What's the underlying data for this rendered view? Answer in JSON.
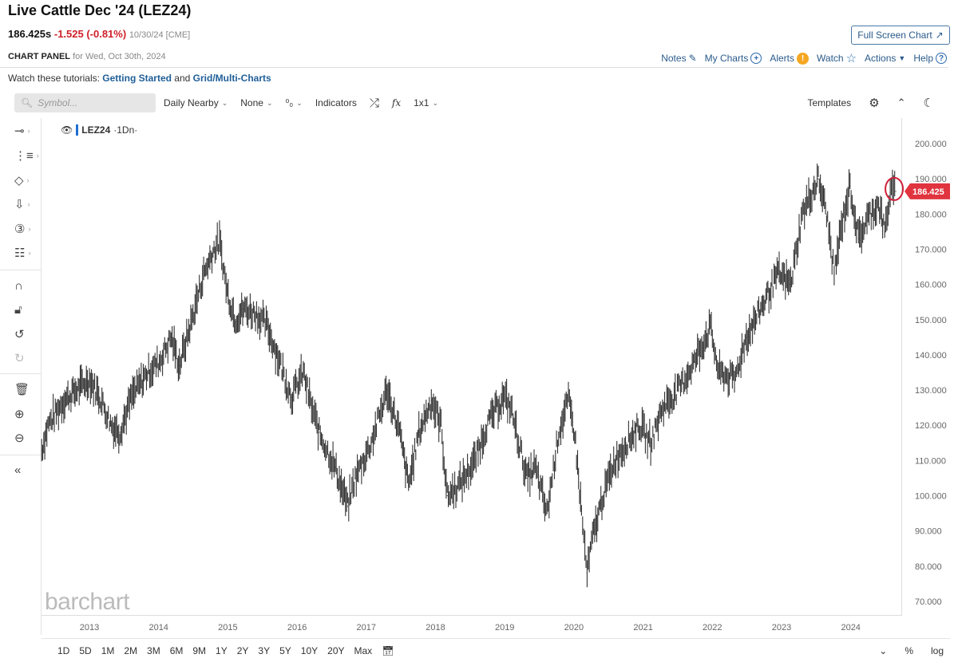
{
  "header": {
    "title": "Live Cattle Dec '24 (LEZ24)",
    "last": "186.425s",
    "change": "-1.525 (-0.81%)",
    "meta": "10/30/24 [CME]",
    "panel_label": "CHART PANEL",
    "panel_date": "for Wed, Oct 30th, 2024",
    "full_screen": "Full Screen Chart"
  },
  "links": {
    "notes": "Notes",
    "my_charts": "My Charts",
    "alerts": "Alerts",
    "watch": "Watch",
    "actions": "Actions",
    "help": "Help"
  },
  "tutorials": {
    "prefix": "Watch these tutorials:",
    "link1": "Getting Started",
    "and": "and",
    "link2": "Grid/Multi-Charts"
  },
  "toolbar": {
    "search_placeholder": "Symbol...",
    "period": "Daily Nearby",
    "compare": "None",
    "chart_type": "⁰₀",
    "indicators": "Indicators",
    "fx": "fx",
    "layout": "1x1",
    "templates": "Templates"
  },
  "legend": {
    "symbol": "LEZ24",
    "interval": "·1Dn·"
  },
  "logo": "barchart",
  "ranges": [
    "1D",
    "5D",
    "1M",
    "2M",
    "3M",
    "6M",
    "9M",
    "1Y",
    "2Y",
    "3Y",
    "5Y",
    "10Y",
    "20Y",
    "Max"
  ],
  "bottom_right": {
    "percent": "%",
    "log": "log"
  },
  "colors": {
    "price_tag": "#e0343f",
    "link": "#2a5a8a",
    "series": "#333333"
  },
  "chart_data": {
    "type": "ohlc",
    "symbol": "LEZ24",
    "current_price": 186.425,
    "current_label": "186.425",
    "ylim": [
      70,
      200
    ],
    "yticks": [
      "200.000",
      "190.000",
      "180.000",
      "170.000",
      "160.000",
      "150.000",
      "140.000",
      "130.000",
      "120.000",
      "110.000",
      "100.000",
      "90.000",
      "80.000",
      "70.000"
    ],
    "ytick_values": [
      200,
      190,
      180,
      170,
      160,
      150,
      140,
      130,
      120,
      110,
      100,
      90,
      80,
      70
    ],
    "xticks": [
      "2013",
      "2014",
      "2015",
      "2016",
      "2017",
      "2018",
      "2019",
      "2020",
      "2021",
      "2022",
      "2023",
      "2024"
    ],
    "xtick_values": [
      2013,
      2014,
      2015,
      2016,
      2017,
      2018,
      2019,
      2020,
      2021,
      2022,
      2023,
      2024
    ],
    "grid": false,
    "series": [
      {
        "name": "LEZ24",
        "points": [
          [
            2012.31,
            113
          ],
          [
            2012.4,
            120
          ],
          [
            2012.63,
            127
          ],
          [
            2013.0,
            133
          ],
          [
            2013.15,
            128
          ],
          [
            2013.32,
            120
          ],
          [
            2013.44,
            118
          ],
          [
            2013.61,
            128
          ],
          [
            2013.84,
            135
          ],
          [
            2014.01,
            138
          ],
          [
            2014.18,
            145
          ],
          [
            2014.3,
            137
          ],
          [
            2014.48,
            150
          ],
          [
            2014.65,
            163
          ],
          [
            2014.8,
            170
          ],
          [
            2014.88,
            172
          ],
          [
            2014.99,
            158
          ],
          [
            2015.11,
            150
          ],
          [
            2015.23,
            153
          ],
          [
            2015.4,
            152
          ],
          [
            2015.57,
            148
          ],
          [
            2015.75,
            138
          ],
          [
            2015.92,
            128
          ],
          [
            2016.09,
            135
          ],
          [
            2016.21,
            125
          ],
          [
            2016.32,
            118
          ],
          [
            2016.55,
            108
          ],
          [
            2016.73,
            97
          ],
          [
            2016.84,
            105
          ],
          [
            2017.07,
            115
          ],
          [
            2017.3,
            130
          ],
          [
            2017.48,
            118
          ],
          [
            2017.61,
            103
          ],
          [
            2017.76,
            118
          ],
          [
            2017.94,
            127
          ],
          [
            2018.08,
            120
          ],
          [
            2018.17,
            100
          ],
          [
            2018.34,
            103
          ],
          [
            2018.57,
            110
          ],
          [
            2018.74,
            120
          ],
          [
            2018.98,
            128
          ],
          [
            2019.09,
            125
          ],
          [
            2019.32,
            105
          ],
          [
            2019.44,
            108
          ],
          [
            2019.61,
            95
          ],
          [
            2019.78,
            118
          ],
          [
            2019.92,
            127
          ],
          [
            2020.01,
            118
          ],
          [
            2020.11,
            95
          ],
          [
            2020.19,
            78
          ],
          [
            2020.27,
            88
          ],
          [
            2020.42,
            100
          ],
          [
            2020.59,
            110
          ],
          [
            2020.76,
            115
          ],
          [
            2020.94,
            120
          ],
          [
            2021.11,
            115
          ],
          [
            2021.28,
            125
          ],
          [
            2021.51,
            130
          ],
          [
            2021.74,
            138
          ],
          [
            2021.97,
            148
          ],
          [
            2022.09,
            135
          ],
          [
            2022.32,
            133
          ],
          [
            2022.49,
            145
          ],
          [
            2022.67,
            152
          ],
          [
            2022.95,
            163
          ],
          [
            2023.13,
            160
          ],
          [
            2023.3,
            180
          ],
          [
            2023.53,
            190
          ],
          [
            2023.65,
            180
          ],
          [
            2023.76,
            163
          ],
          [
            2023.88,
            178
          ],
          [
            2023.99,
            188
          ],
          [
            2024.11,
            173
          ],
          [
            2024.28,
            180
          ],
          [
            2024.4,
            183
          ],
          [
            2024.49,
            175
          ],
          [
            2024.57,
            186
          ],
          [
            2024.65,
            186.425
          ]
        ]
      }
    ]
  }
}
